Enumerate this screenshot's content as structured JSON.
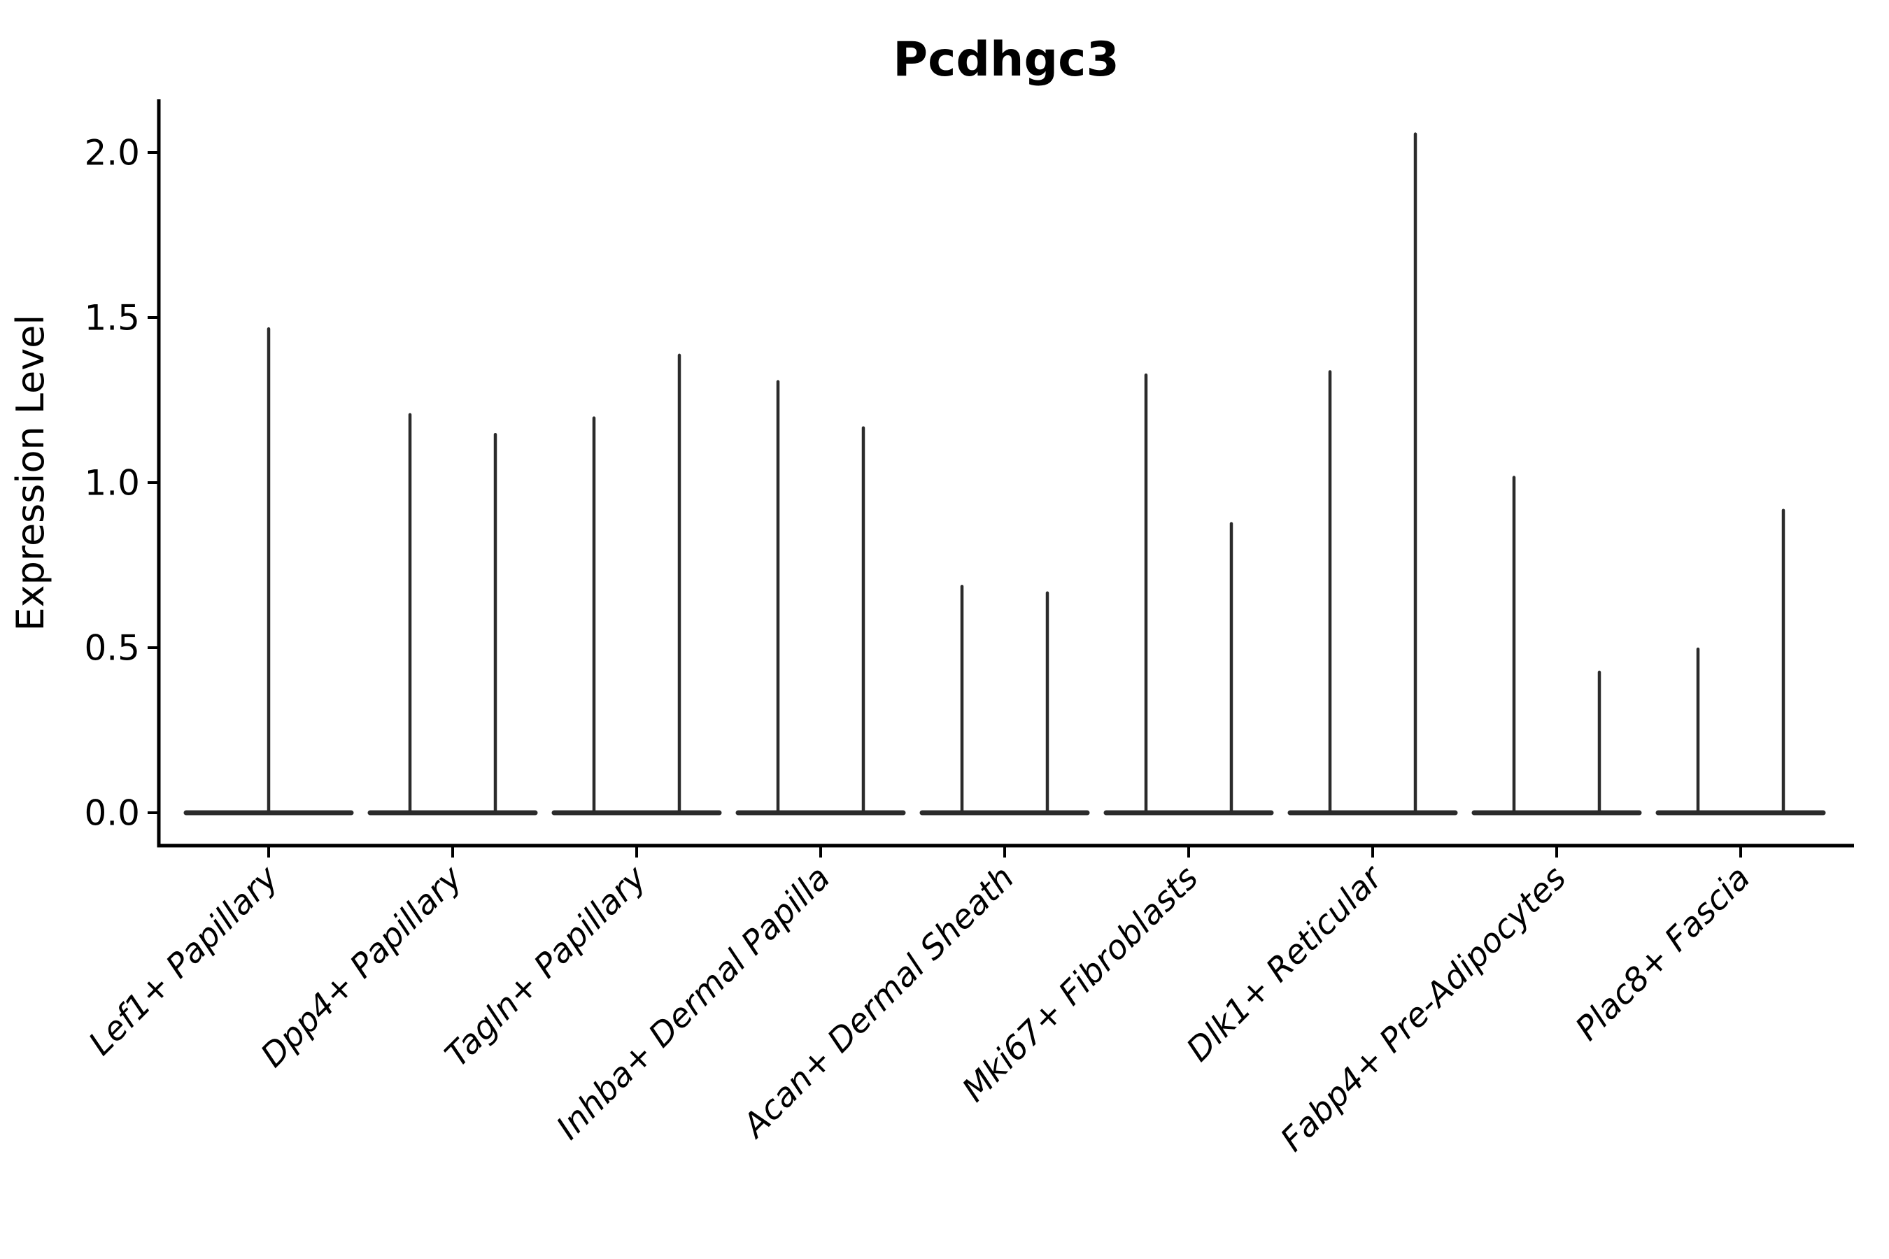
{
  "chart_data": {
    "type": "violin",
    "title": "Pcdhgc3",
    "ylabel": "Expression Level",
    "xlabel": "",
    "yticks": [
      2.0,
      1.5,
      1.0,
      0.5,
      0.0
    ],
    "ylim": [
      -0.1,
      2.16
    ],
    "grid": false,
    "legend": false,
    "background": "#ffffff",
    "axis_color": "#000000",
    "violin_color": "#2b2b2b",
    "baseline_value": 0.0,
    "categories": [
      "Lef1+ Papillary",
      "Dpp4+ Papillary",
      "Tagln+ Papillary",
      "Inhba+ Dermal Papilla",
      "Acan+ Dermal Sheath",
      "Mki67+ Fibroblasts",
      "Dlk1+ Reticular",
      "Fabp4+ Pre-Adipocytes",
      "Plac8+ Fascia"
    ],
    "series": [
      {
        "category": "Lef1+ Papillary",
        "violin_max": [
          1.47
        ]
      },
      {
        "category": "Dpp4+ Papillary",
        "violin_max": [
          1.21,
          1.15
        ]
      },
      {
        "category": "Tagln+ Papillary",
        "violin_max": [
          1.2,
          1.39
        ]
      },
      {
        "category": "Inhba+ Dermal Papilla",
        "violin_max": [
          1.31,
          1.17
        ]
      },
      {
        "category": "Acan+ Dermal Sheath",
        "violin_max": [
          0.69,
          0.67
        ]
      },
      {
        "category": "Mki67+ Fibroblasts",
        "violin_max": [
          1.33,
          0.88
        ]
      },
      {
        "category": "Dlk1+ Reticular",
        "violin_max": [
          1.34,
          2.06
        ]
      },
      {
        "category": "Fabp4+ Pre-Adipocytes",
        "violin_max": [
          1.02,
          0.43
        ]
      },
      {
        "category": "Plac8+ Fascia",
        "violin_max": [
          0.5,
          0.92
        ]
      }
    ],
    "shape_note": "Each violin is a wide flat body at expression 0 with a thin vertical spike reaching its maximum expression value"
  }
}
